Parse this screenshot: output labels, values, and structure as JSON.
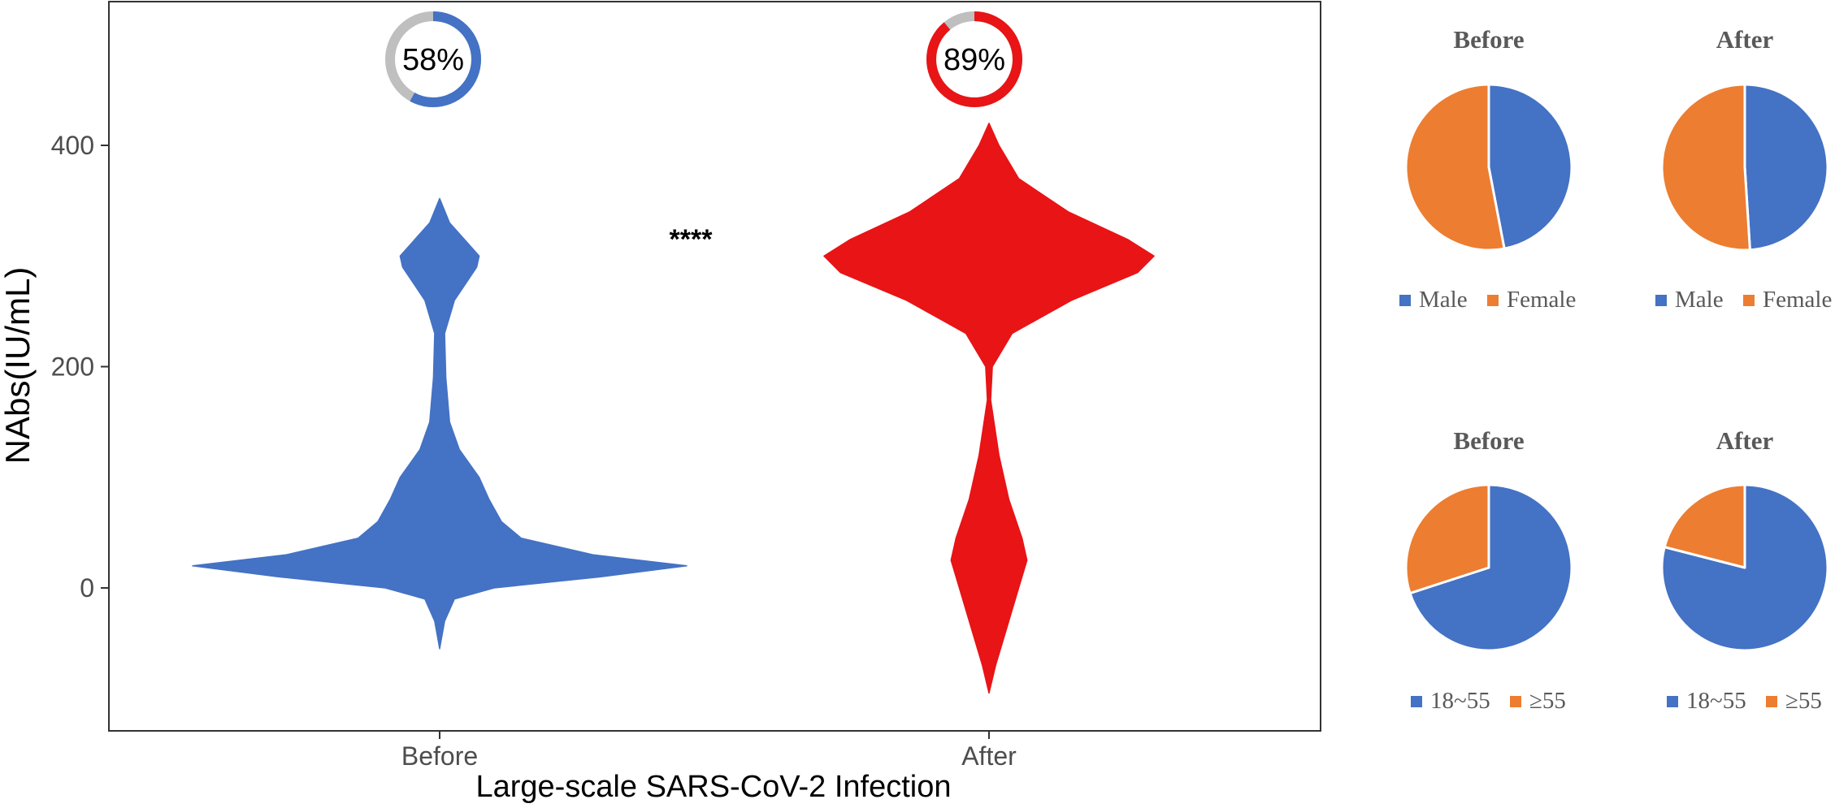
{
  "chart_data": [
    {
      "type": "violin",
      "xlabel": "Large-scale SARS-CoV-2 Infection",
      "ylabel": "NAbs(IU/mL)",
      "ylim": [
        -130,
        530
      ],
      "yticks": [
        0,
        200,
        400
      ],
      "categories": [
        "Before",
        "After"
      ],
      "significance": "****",
      "grid": false,
      "series": [
        {
          "name": "Before",
          "color": "#4472C4",
          "density": [
            [
              -55,
              0.0
            ],
            [
              -30,
              0.02
            ],
            [
              -10,
              0.06
            ],
            [
              0,
              0.22
            ],
            [
              10,
              0.65
            ],
            [
              20,
              1.0
            ],
            [
              30,
              0.62
            ],
            [
              45,
              0.33
            ],
            [
              60,
              0.25
            ],
            [
              80,
              0.2
            ],
            [
              100,
              0.16
            ],
            [
              125,
              0.08
            ],
            [
              150,
              0.04
            ],
            [
              190,
              0.025
            ],
            [
              230,
              0.02
            ],
            [
              260,
              0.06
            ],
            [
              290,
              0.15
            ],
            [
              300,
              0.16
            ],
            [
              315,
              0.1
            ],
            [
              330,
              0.04
            ],
            [
              352,
              0.0
            ]
          ],
          "positive_rate_percent": 58
        },
        {
          "name": "After",
          "color": "#E81416",
          "density": [
            [
              -95,
              0.0
            ],
            [
              -70,
              0.02
            ],
            [
              -40,
              0.05
            ],
            [
              0,
              0.09
            ],
            [
              25,
              0.115
            ],
            [
              45,
              0.1
            ],
            [
              80,
              0.06
            ],
            [
              120,
              0.03
            ],
            [
              170,
              0.005
            ],
            [
              200,
              0.01
            ],
            [
              230,
              0.07
            ],
            [
              260,
              0.25
            ],
            [
              285,
              0.45
            ],
            [
              300,
              0.5
            ],
            [
              315,
              0.42
            ],
            [
              340,
              0.24
            ],
            [
              370,
              0.09
            ],
            [
              400,
              0.03
            ],
            [
              420,
              0.0
            ]
          ],
          "positive_rate_percent": 89
        }
      ],
      "donuts": [
        {
          "label": "58%",
          "value": 58,
          "color": "#4472C4",
          "rest_color": "#BFBFBF"
        },
        {
          "label": "89%",
          "value": 89,
          "color": "#E81416",
          "rest_color": "#BFBFBF"
        }
      ]
    },
    {
      "type": "pie",
      "title": "Before",
      "slices": [
        {
          "label": "Male",
          "value": 47,
          "color": "#4472C4"
        },
        {
          "label": "Female",
          "value": 53,
          "color": "#ED7D31"
        }
      ]
    },
    {
      "type": "pie",
      "title": "After",
      "slices": [
        {
          "label": "Male",
          "value": 49,
          "color": "#4472C4"
        },
        {
          "label": "Female",
          "value": 51,
          "color": "#ED7D31"
        }
      ]
    },
    {
      "type": "pie",
      "title": "Before",
      "slices": [
        {
          "label": "18~55",
          "value": 70,
          "color": "#4472C4"
        },
        {
          "label": "≥55",
          "value": 30,
          "color": "#ED7D31"
        }
      ]
    },
    {
      "type": "pie",
      "title": "After",
      "slices": [
        {
          "label": "18~55",
          "value": 79,
          "color": "#4472C4"
        },
        {
          "label": "≥55",
          "value": 21,
          "color": "#ED7D31"
        }
      ]
    }
  ]
}
